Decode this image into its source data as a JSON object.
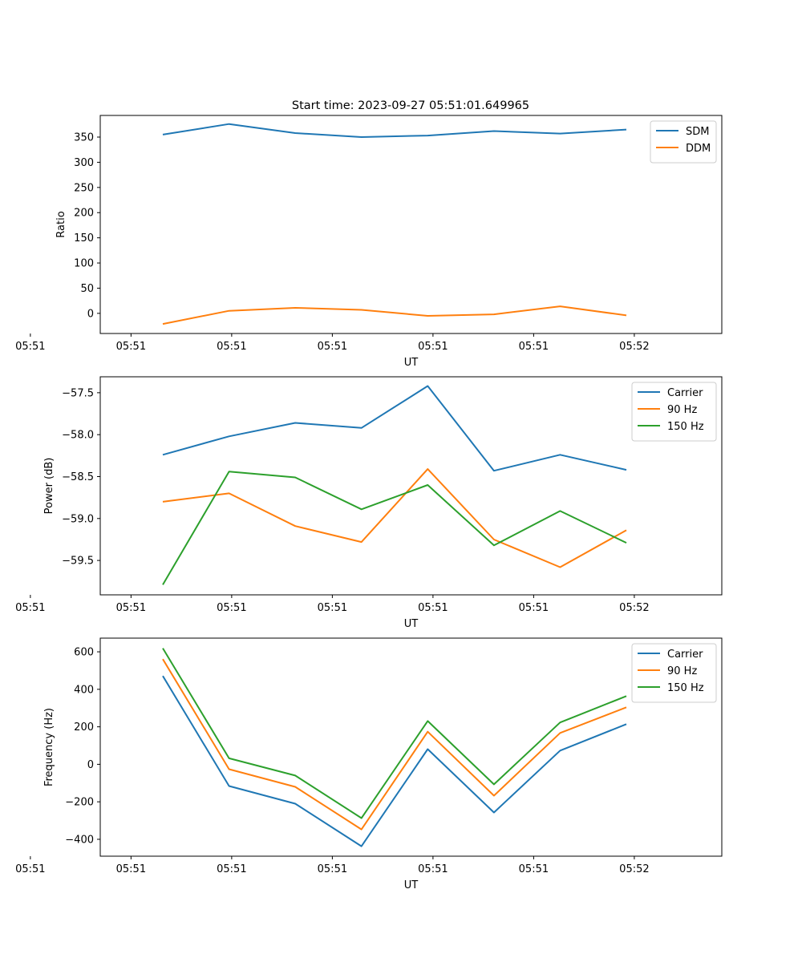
{
  "figure": {
    "title": "Start time: 2023-09-27 05:51:01.649965"
  },
  "chart_data": [
    {
      "type": "line",
      "title": "Start time: 2023-09-27 05:51:01.649965",
      "xlabel": "UT",
      "ylabel": "Ratio",
      "x_tick_labels": [
        "05:51",
        "05:51",
        "05:51",
        "05:51",
        "05:51",
        "05:51",
        "05:52"
      ],
      "x_index": [
        1,
        2,
        3,
        4,
        5,
        6,
        7,
        8
      ],
      "xlim": [
        -1.2,
        8.2
      ],
      "ylim": [
        -40,
        393
      ],
      "y_ticks": [
        0,
        50,
        100,
        150,
        200,
        250,
        300,
        350
      ],
      "y_tick_labels": [
        "0",
        "50",
        "100",
        "150",
        "200",
        "250",
        "300",
        "350"
      ],
      "legend_position": "upper-right",
      "grid": false,
      "series": [
        {
          "name": "SDM",
          "color": "#1f77b4",
          "values": [
            355,
            376,
            358,
            350,
            353,
            362,
            357,
            365
          ]
        },
        {
          "name": "DDM",
          "color": "#ff7f0e",
          "values": [
            -21,
            5,
            11,
            7,
            -5,
            -2,
            14,
            -4
          ]
        }
      ]
    },
    {
      "type": "line",
      "title": "",
      "xlabel": "UT",
      "ylabel": "Power (dB)",
      "x_tick_labels": [
        "05:51",
        "05:51",
        "05:51",
        "05:51",
        "05:51",
        "05:51",
        "05:52"
      ],
      "x_index": [
        1,
        2,
        3,
        4,
        5,
        6,
        7,
        8
      ],
      "xlim": [
        -1.2,
        8.2
      ],
      "ylim": [
        -59.91,
        -57.31
      ],
      "y_ticks": [
        -59.5,
        -59.0,
        -58.5,
        -58.0,
        -57.5
      ],
      "y_tick_labels": [
        "−59.5",
        "−59.0",
        "−58.5",
        "−58.0",
        "−57.5"
      ],
      "legend_position": "upper-right",
      "grid": false,
      "series": [
        {
          "name": "Carrier",
          "color": "#1f77b4",
          "values": [
            -58.24,
            -58.02,
            -57.86,
            -57.92,
            -57.42,
            -58.43,
            -58.24,
            -58.42
          ]
        },
        {
          "name": "90 Hz",
          "color": "#ff7f0e",
          "values": [
            -58.8,
            -58.7,
            -59.09,
            -59.28,
            -58.41,
            -59.25,
            -59.58,
            -59.14
          ]
        },
        {
          "name": "150 Hz",
          "color": "#2ca02c",
          "values": [
            -59.79,
            -58.44,
            -58.51,
            -58.89,
            -58.6,
            -59.32,
            -58.91,
            -59.29
          ]
        }
      ]
    },
    {
      "type": "line",
      "title": "",
      "xlabel": "UT",
      "ylabel": "Frequency (Hz)",
      "x_tick_labels": [
        "05:51",
        "05:51",
        "05:51",
        "05:51",
        "05:51",
        "05:51",
        "05:52"
      ],
      "x_index": [
        1,
        2,
        3,
        4,
        5,
        6,
        7,
        8
      ],
      "xlim": [
        -1.2,
        8.2
      ],
      "ylim": [
        -490,
        673
      ],
      "y_ticks": [
        -400,
        -200,
        0,
        200,
        400,
        600
      ],
      "y_tick_labels": [
        "−400",
        "−200",
        "0",
        "200",
        "400",
        "600"
      ],
      "legend_position": "upper-right",
      "grid": false,
      "series": [
        {
          "name": "Carrier",
          "color": "#1f77b4",
          "values": [
            471,
            -116,
            -210,
            -437,
            81,
            -257,
            73,
            214
          ]
        },
        {
          "name": "90 Hz",
          "color": "#ff7f0e",
          "values": [
            561,
            -26,
            -120,
            -347,
            174,
            -167,
            167,
            304
          ]
        },
        {
          "name": "150 Hz",
          "color": "#2ca02c",
          "values": [
            619,
            32,
            -60,
            -287,
            231,
            -107,
            223,
            364
          ]
        }
      ]
    }
  ]
}
